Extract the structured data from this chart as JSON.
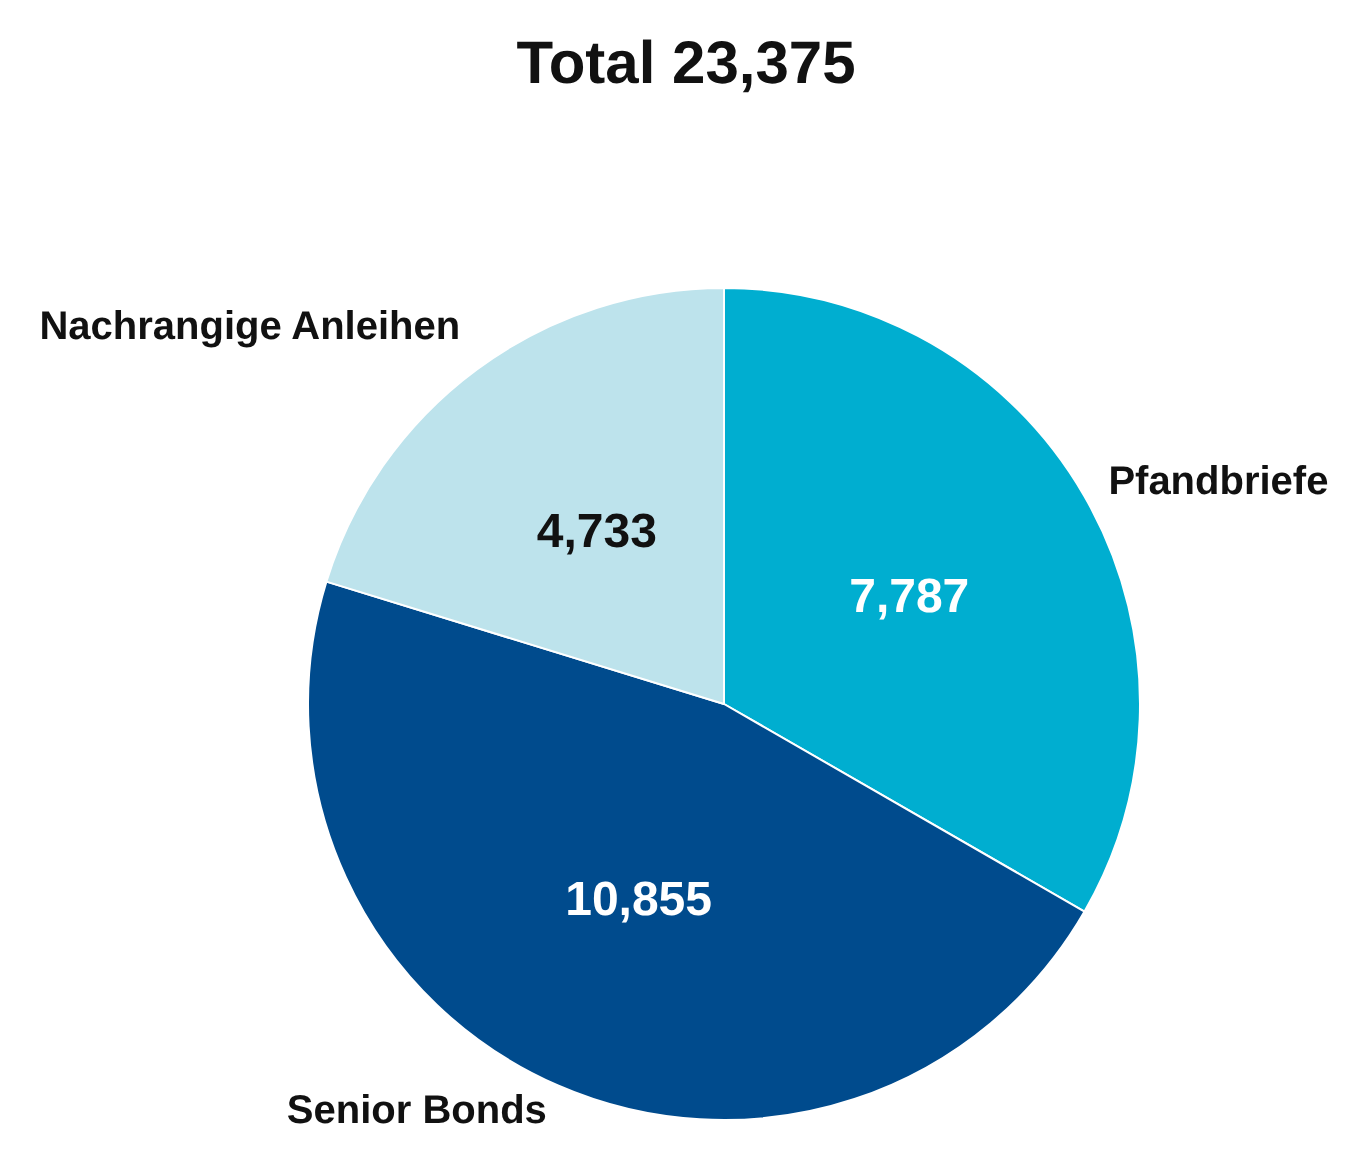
{
  "chart_data": {
    "type": "pie",
    "title": "Total 23,375",
    "categories": [
      "Pfandbriefe",
      "Senior Bonds",
      "Nachrangige Anleihen"
    ],
    "values": [
      7787,
      10855,
      4733
    ],
    "colors": [
      "#00aed0",
      "#004b8d",
      "#bde3ec"
    ],
    "value_labels": [
      "7,787",
      "10,855",
      "4,733"
    ],
    "legend": false
  }
}
